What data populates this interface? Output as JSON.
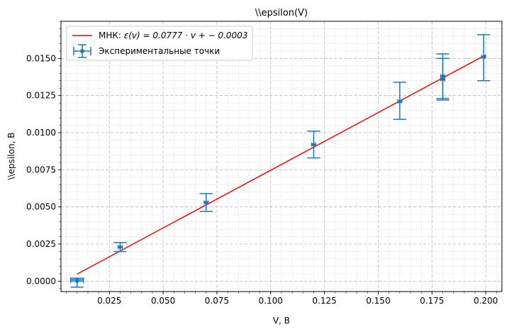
{
  "chart_data": {
    "type": "scatter",
    "title": "\\\\epsilon(V)",
    "xlabel": "V, B",
    "ylabel": "\\\\epsilon, B",
    "xlim": [
      0.0025,
      0.2075
    ],
    "ylim": [
      -0.0007,
      0.0175
    ],
    "xticks": [
      0.025,
      0.05,
      0.075,
      0.1,
      0.125,
      0.15,
      0.175,
      0.2
    ],
    "xtick_labels": [
      "0.025",
      "0.050",
      "0.075",
      "0.100",
      "0.125",
      "0.150",
      "0.175",
      "0.200"
    ],
    "yticks": [
      0,
      0.0025,
      0.005,
      0.0075,
      0.01,
      0.0125,
      0.015
    ],
    "ytick_labels": [
      "0.0000",
      "0.0025",
      "0.0050",
      "0.0075",
      "0.0100",
      "0.0125",
      "0.0150"
    ],
    "grid": true,
    "minor_grid": true,
    "legend_position": "top-left",
    "fit": {
      "label_prefix": "МНК: ",
      "label_formula": "ε(v) = 0.0777 · v + − 0.0003",
      "slope": 0.0777,
      "intercept": -0.0003,
      "x_range": [
        0.01,
        0.2
      ],
      "color": "#ff0000"
    },
    "series": [
      {
        "name": "Экспериментальные точки",
        "color": "#1f77b4",
        "points": [
          {
            "x": 0.01,
            "y": 0.0,
            "xerr": 0.003,
            "yerr_low": 0.0004,
            "yerr_high": 0.0001,
            "cap_half": 0.003
          },
          {
            "x": 0.01,
            "y": 0.0001,
            "xerr": 0.003,
            "yerr_low": 0.0001,
            "yerr_high": 0.0001,
            "cap_half": 0.003
          },
          {
            "x": 0.03,
            "y": 0.0023,
            "xerr": 0.001,
            "yerr_low": 0.0003,
            "yerr_high": 0.0003,
            "cap_half": 0.003
          },
          {
            "x": 0.07,
            "y": 0.0053,
            "xerr": 0.001,
            "yerr_low": 0.0006,
            "yerr_high": 0.0006,
            "cap_half": 0.003
          },
          {
            "x": 0.12,
            "y": 0.0092,
            "xerr": 0.001,
            "yerr_low": 0.0009,
            "yerr_high": 0.0009,
            "cap_half": 0.003
          },
          {
            "x": 0.16,
            "y": 0.0121,
            "xerr": 0.001,
            "yerr_low": 0.0012,
            "yerr_high": 0.0013,
            "cap_half": 0.003
          },
          {
            "x": 0.18,
            "y": 0.0136,
            "xerr": 0.001,
            "yerr_low": 0.0014,
            "yerr_high": 0.0014,
            "cap_half": 0.003
          },
          {
            "x": 0.18,
            "y": 0.0138,
            "xerr": 0.001,
            "yerr_low": 0.0015,
            "yerr_high": 0.0015,
            "cap_half": 0.003
          },
          {
            "x": 0.199,
            "y": 0.0151,
            "xerr": 0.001,
            "yerr_low": 0.0016,
            "yerr_high": 0.0015,
            "cap_half": 0.003
          }
        ]
      }
    ]
  }
}
